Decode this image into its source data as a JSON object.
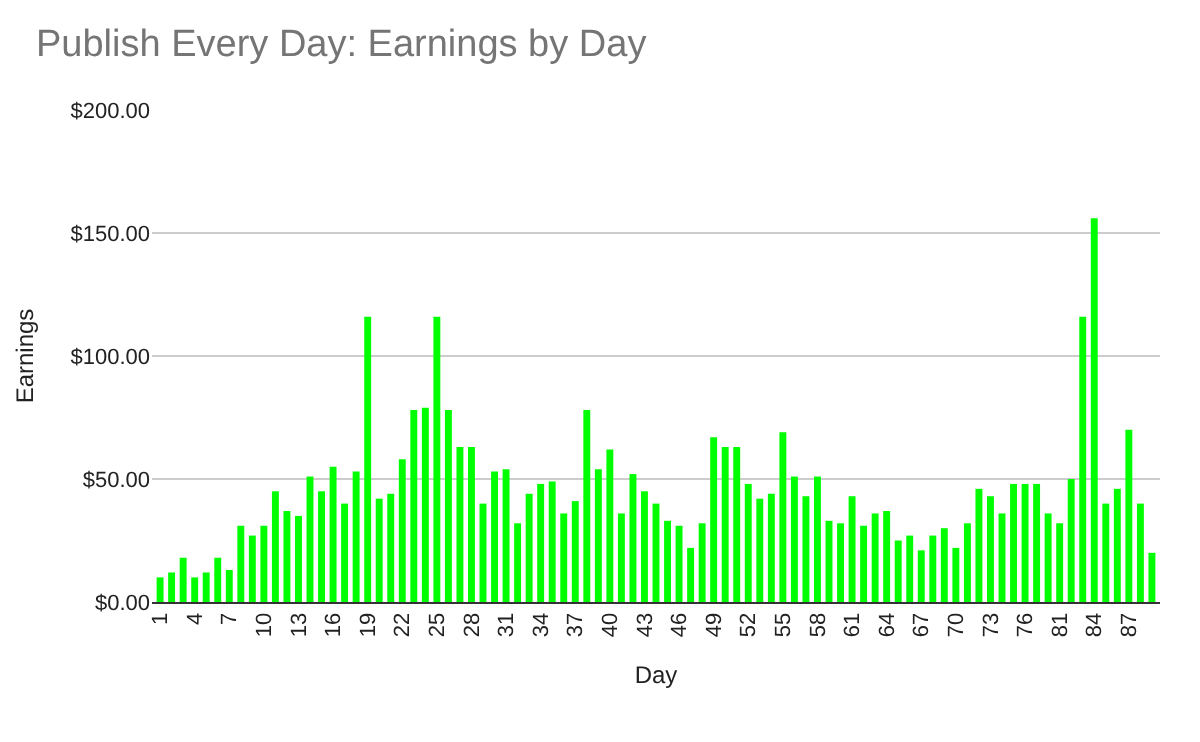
{
  "chart_data": {
    "type": "bar",
    "title": "Publish Every Day: Earnings by Day",
    "xlabel": "Day",
    "ylabel": "Earnings",
    "categories": [
      "1",
      null,
      null,
      "4",
      null,
      null,
      "7",
      null,
      null,
      "10",
      null,
      null,
      "13",
      null,
      null,
      "16",
      null,
      null,
      "19",
      null,
      null,
      "22",
      null,
      null,
      "25",
      null,
      null,
      "28",
      null,
      null,
      "31",
      null,
      null,
      "34",
      null,
      null,
      "37",
      null,
      null,
      "40",
      null,
      null,
      "43",
      null,
      null,
      "46",
      null,
      null,
      "49",
      null,
      null,
      "52",
      null,
      null,
      "55",
      null,
      null,
      "58",
      null,
      null,
      "61",
      null,
      null,
      "64",
      null,
      null,
      "67",
      null,
      null,
      "70",
      null,
      null,
      "73",
      null,
      null,
      "76",
      null,
      null,
      "81",
      null,
      null,
      "84",
      null,
      null,
      "87",
      null,
      null
    ],
    "values": [
      10,
      12,
      18,
      10,
      12,
      18,
      13,
      31,
      27,
      31,
      45,
      37,
      35,
      51,
      45,
      55,
      40,
      53,
      116,
      42,
      44,
      58,
      78,
      79,
      116,
      78,
      63,
      63,
      40,
      53,
      54,
      32,
      44,
      48,
      49,
      36,
      41,
      78,
      54,
      62,
      36,
      52,
      45,
      40,
      33,
      31,
      22,
      32,
      67,
      63,
      63,
      48,
      42,
      44,
      69,
      51,
      43,
      51,
      33,
      32,
      43,
      31,
      36,
      37,
      25,
      27,
      21,
      27,
      30,
      22,
      32,
      46,
      43,
      36,
      48,
      48,
      48,
      36,
      32,
      50,
      116,
      156,
      40,
      46,
      70,
      40,
      20
    ],
    "color": "#00ff00",
    "ylim": [
      0,
      200
    ],
    "yticks": [
      {
        "value": 0,
        "label": "$0.00"
      },
      {
        "value": 50,
        "label": "$50.00"
      },
      {
        "value": 100,
        "label": "$100.00"
      },
      {
        "value": 150,
        "label": "$150.00"
      },
      {
        "value": 200,
        "label": "$200.00"
      }
    ],
    "grid": "y"
  }
}
